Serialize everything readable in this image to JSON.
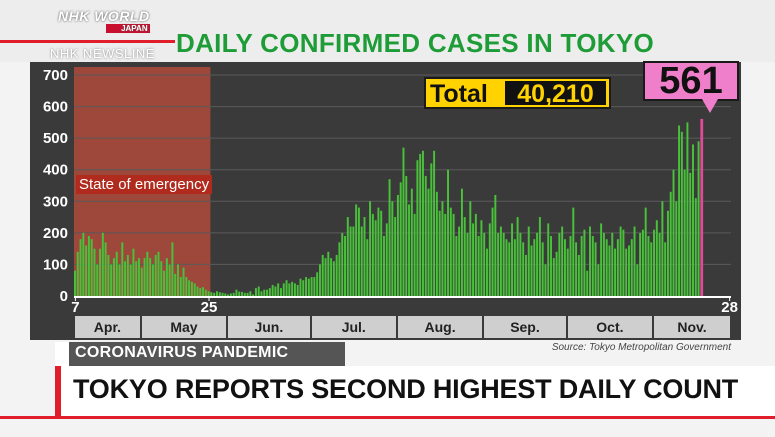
{
  "broadcaster": {
    "logo_line1": "NHK WORLD",
    "logo_line2": "JAPAN",
    "program": "NHK NEWSLINE"
  },
  "chart_title": "DAILY CONFIRMED CASES IN TOKYO",
  "total": {
    "label": "Total",
    "value": "40,210"
  },
  "latest_callout": "561",
  "emergency_label": "State of emergency",
  "source": "Source: Tokyo Metropolitan Government",
  "lower_third": {
    "category": "CORONAVIRUS PANDEMIC",
    "headline": "TOKYO REPORTS SECOND HIGHEST DAILY COUNT"
  },
  "colors": {
    "title_green": "#1e9c37",
    "bar_green": "#49c13a",
    "emergency_red": "#b04a3c",
    "total_yellow": "#ffd200",
    "callout_pink": "#f07fcb",
    "latest_bar": "#e04a99",
    "accent_red": "#e01e2b"
  },
  "chart_data": {
    "type": "bar",
    "title": "DAILY CONFIRMED CASES IN TOKYO",
    "xlabel": "",
    "ylabel": "",
    "ylim": [
      0,
      700
    ],
    "yticks": [
      0,
      100,
      200,
      300,
      400,
      500,
      600,
      700
    ],
    "x_day_labels": [
      {
        "label": "7",
        "date": "2020-04-07"
      },
      {
        "label": "25",
        "date": "2020-05-25"
      },
      {
        "label": "28",
        "date": "2020-11-28"
      }
    ],
    "months": [
      "Apr.",
      "May",
      "Jun.",
      "Jul.",
      "Aug.",
      "Sep.",
      "Oct.",
      "Nov."
    ],
    "start_date": "2020-04-07",
    "end_date": "2020-11-28",
    "shaded_period": {
      "label": "State of emergency",
      "from": "2020-04-07",
      "to": "2020-05-25"
    },
    "latest": {
      "date": "2020-11-28",
      "value": 561
    },
    "values": [
      80,
      140,
      180,
      200,
      160,
      190,
      180,
      150,
      100,
      150,
      200,
      170,
      130,
      100,
      120,
      140,
      100,
      170,
      110,
      130,
      100,
      150,
      110,
      120,
      90,
      120,
      140,
      120,
      100,
      130,
      140,
      110,
      80,
      120,
      100,
      170,
      70,
      100,
      60,
      90,
      60,
      50,
      45,
      40,
      30,
      25,
      28,
      20,
      15,
      12,
      10,
      15,
      12,
      10,
      8,
      5,
      8,
      10,
      20,
      14,
      13,
      10,
      10,
      15,
      5,
      25,
      30,
      15,
      20,
      20,
      25,
      35,
      30,
      40,
      25,
      40,
      50,
      40,
      45,
      40,
      35,
      55,
      50,
      60,
      55,
      60,
      60,
      75,
      100,
      130,
      120,
      140,
      120,
      110,
      130,
      170,
      200,
      190,
      250,
      220,
      220,
      290,
      280,
      220,
      250,
      180,
      300,
      260,
      240,
      280,
      270,
      190,
      230,
      370,
      300,
      250,
      320,
      360,
      470,
      380,
      290,
      340,
      260,
      430,
      450,
      460,
      380,
      340,
      420,
      460,
      330,
      270,
      300,
      260,
      400,
      280,
      260,
      190,
      220,
      340,
      250,
      200,
      300,
      230,
      260,
      190,
      240,
      200,
      150,
      230,
      280,
      320,
      200,
      220,
      200,
      180,
      170,
      230,
      180,
      250,
      200,
      170,
      130,
      220,
      160,
      180,
      200,
      250,
      170,
      100,
      230,
      190,
      120,
      140,
      200,
      220,
      180,
      150,
      190,
      280,
      170,
      130,
      190,
      210,
      80,
      220,
      190,
      170,
      100,
      230,
      200,
      180,
      160,
      200,
      150,
      180,
      220,
      210,
      150,
      160,
      180,
      220,
      100,
      200,
      210,
      280,
      190,
      170,
      210,
      240,
      200,
      300,
      170,
      270,
      330,
      400,
      300,
      540,
      520,
      400,
      550,
      390,
      480,
      310,
      490,
      561
    ]
  }
}
